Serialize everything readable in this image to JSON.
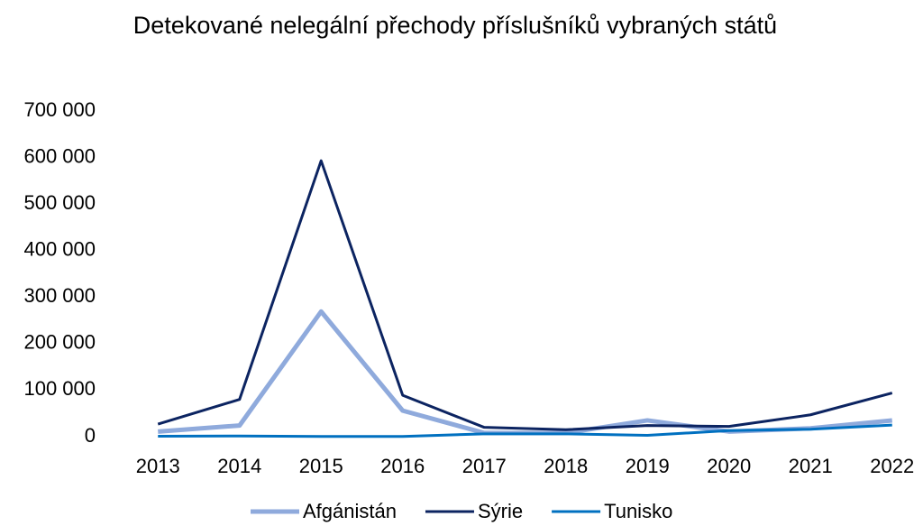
{
  "chart_data": {
    "type": "line",
    "title": "Detekované nelegální přechody příslušníků vybraných států",
    "categories": [
      "2013",
      "2014",
      "2015",
      "2016",
      "2017",
      "2018",
      "2019",
      "2020",
      "2021",
      "2022"
    ],
    "series": [
      {
        "name": "Afgánistán",
        "color": "#8faadc",
        "values": [
          11000,
          24000,
          269000,
          56000,
          8000,
          8000,
          35000,
          11000,
          18000,
          35000
        ]
      },
      {
        "name": "Sýrie",
        "color": "#0c2461",
        "values": [
          27000,
          80000,
          593000,
          89000,
          20000,
          15000,
          24000,
          22000,
          47000,
          94000
        ]
      },
      {
        "name": "Tunisko",
        "color": "#0070c0",
        "values": [
          1000,
          1500,
          500,
          600,
          6000,
          6000,
          3000,
          13000,
          16000,
          25000
        ]
      }
    ],
    "ylim": [
      0,
      700000
    ],
    "yticks": [
      0,
      {
        "value": 100000,
        "label": "100 000"
      },
      {
        "value": 200000,
        "label": "200 000"
      },
      {
        "value": 300000,
        "label": "300 000"
      },
      {
        "value": 400000,
        "label": "400 000"
      },
      {
        "value": 500000,
        "label": "500 000"
      },
      {
        "value": 600000,
        "label": "600 000"
      },
      {
        "value": 700000,
        "label": "700 000"
      }
    ],
    "grid": false,
    "legend": "bottom"
  }
}
